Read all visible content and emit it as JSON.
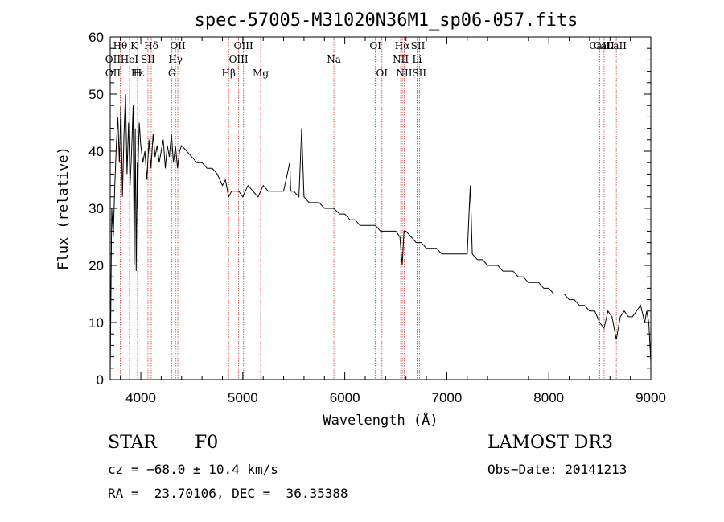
{
  "chart_data": {
    "type": "line",
    "title": "spec-57005-M31020N36M1_sp06-057.fits",
    "xlabel": "Wavelength (Å)",
    "ylabel": "Flux (relative)",
    "xlim": [
      3700,
      9000
    ],
    "ylim": [
      0,
      60
    ],
    "xticks": [
      4000,
      5000,
      6000,
      7000,
      8000,
      9000
    ],
    "yticks": [
      0,
      10,
      20,
      30,
      40,
      50,
      60
    ],
    "series": [
      {
        "name": "spectrum",
        "color": "#000000",
        "x": [
          3700,
          3715,
          3730,
          3745,
          3760,
          3775,
          3790,
          3805,
          3820,
          3835,
          3850,
          3865,
          3880,
          3895,
          3910,
          3925,
          3935,
          3945,
          3955,
          3965,
          3970,
          3975,
          3985,
          4000,
          4020,
          4040,
          4060,
          4080,
          4100,
          4120,
          4140,
          4160,
          4180,
          4200,
          4220,
          4240,
          4260,
          4280,
          4300,
          4320,
          4340,
          4360,
          4380,
          4400,
          4450,
          4500,
          4550,
          4600,
          4650,
          4700,
          4750,
          4800,
          4830,
          4861,
          4890,
          4920,
          4960,
          5000,
          5050,
          5100,
          5150,
          5200,
          5250,
          5300,
          5350,
          5400,
          5460,
          5470,
          5500,
          5550,
          5577,
          5600,
          5650,
          5700,
          5750,
          5800,
          5850,
          5890,
          5950,
          6000,
          6050,
          6100,
          6150,
          6200,
          6250,
          6300,
          6350,
          6400,
          6450,
          6500,
          6540,
          6563,
          6580,
          6600,
          6650,
          6700,
          6750,
          6800,
          6850,
          6900,
          6950,
          7000,
          7050,
          7100,
          7150,
          7200,
          7230,
          7250,
          7300,
          7350,
          7400,
          7450,
          7500,
          7550,
          7600,
          7650,
          7700,
          7750,
          7800,
          7850,
          7900,
          7950,
          8000,
          8050,
          8100,
          8150,
          8200,
          8250,
          8300,
          8350,
          8400,
          8450,
          8498,
          8542,
          8580,
          8620,
          8662,
          8700,
          8740,
          8780,
          8820,
          8860,
          8900,
          8940,
          8960,
          8980,
          9000
        ],
        "y": [
          1,
          30,
          25,
          34,
          41,
          46,
          38,
          48,
          32,
          43,
          50,
          36,
          45,
          34,
          40,
          48,
          20,
          44,
          19,
          38,
          30,
          39,
          45,
          41,
          38,
          40,
          35,
          42,
          37,
          43,
          39,
          41,
          38,
          40,
          42,
          37,
          41,
          39,
          43,
          38,
          41,
          37,
          40,
          41,
          40,
          39,
          38,
          38,
          37,
          37,
          36,
          34,
          35,
          32,
          33,
          33,
          33,
          32,
          34,
          33,
          32,
          34,
          33,
          33,
          33,
          33,
          38,
          33,
          33,
          32,
          44,
          32,
          31,
          31,
          31,
          30,
          30,
          30,
          29,
          29,
          28,
          28,
          27,
          27,
          27,
          27,
          26,
          26,
          26,
          26,
          25,
          20,
          26,
          26,
          25,
          24,
          24,
          23,
          23,
          23,
          22,
          22,
          22,
          22,
          22,
          22,
          34,
          22,
          21,
          21,
          20,
          20,
          20,
          19,
          19,
          19,
          18,
          18,
          17,
          17,
          17,
          16,
          16,
          15,
          15,
          15,
          14,
          14,
          13,
          13,
          12,
          12,
          10,
          9,
          12,
          11,
          7,
          11,
          12,
          11,
          11,
          12,
          13,
          10,
          12,
          10,
          3
        ]
      }
    ],
    "line_markers": [
      {
        "label": "Hθ",
        "x": 3798,
        "row": 1
      },
      {
        "label": "K",
        "x": 3934,
        "row": 1
      },
      {
        "label": "Hδ",
        "x": 4102,
        "row": 1
      },
      {
        "label": "OII",
        "x": 4363,
        "row": 1
      },
      {
        "label": "OIII",
        "x": 5007,
        "row": 1
      },
      {
        "label": "OI",
        "x": 6300,
        "row": 1
      },
      {
        "label": "Hα",
        "x": 6563,
        "row": 1
      },
      {
        "label": "SII",
        "x": 6717,
        "row": 1
      },
      {
        "label": "CaII",
        "x": 8498,
        "row": 1
      },
      {
        "label": "CaII",
        "x": 8542,
        "row": 1
      },
      {
        "label": "CaII",
        "x": 8662,
        "row": 1
      },
      {
        "label": "OII",
        "x": 3727,
        "row": 2
      },
      {
        "label": "HeI",
        "x": 3889,
        "row": 2
      },
      {
        "label": "SII",
        "x": 4070,
        "row": 2
      },
      {
        "label": "Hγ",
        "x": 4340,
        "row": 2
      },
      {
        "label": "OIII",
        "x": 4959,
        "row": 2
      },
      {
        "label": "Na",
        "x": 5893,
        "row": 2
      },
      {
        "label": "NII",
        "x": 6548,
        "row": 2
      },
      {
        "label": "Li",
        "x": 6708,
        "row": 2
      },
      {
        "label": "OII",
        "x": 3727,
        "row": 3
      },
      {
        "label": "Hε",
        "x": 3970,
        "row": 3
      },
      {
        "label": "H",
        "x": 3968,
        "row": 3
      },
      {
        "label": "G",
        "x": 4305,
        "row": 3
      },
      {
        "label": "Hβ",
        "x": 4861,
        "row": 3
      },
      {
        "label": "Mg",
        "x": 5175,
        "row": 3
      },
      {
        "label": "OI",
        "x": 6364,
        "row": 3
      },
      {
        "label": "NII",
        "x": 6583,
        "row": 3
      },
      {
        "label": "SII",
        "x": 6731,
        "row": 3
      }
    ],
    "marker_color": "#cc3333"
  },
  "info": {
    "class": "STAR",
    "subclass": "F0",
    "survey": "LAMOST DR3",
    "cz": "cz = −68.0 ± 10.4 km/s",
    "obs_date": "Obs−Date: 20141213",
    "radec": "RA =  23.70106, DEC =  36.35388"
  }
}
